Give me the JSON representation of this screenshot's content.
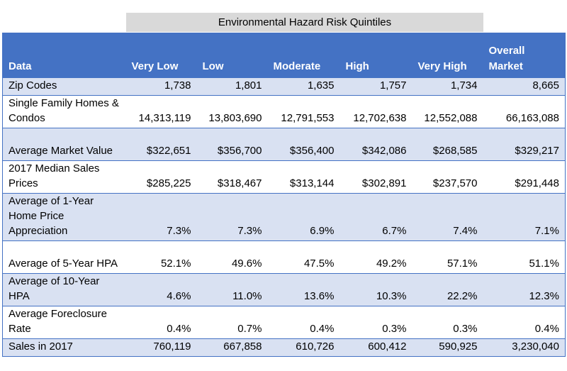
{
  "title": "Environmental Hazard Risk Quintiles",
  "headers": [
    "Data",
    "Very Low",
    "Low",
    "Moderate",
    "High",
    "Very High",
    "Overall Market"
  ],
  "rows": [
    {
      "label": "Zip Codes",
      "values": [
        "1,738",
        "1,801",
        "1,635",
        "1,757",
        "1,734",
        "8,665"
      ]
    },
    {
      "label": "Single Family Homes & Condos",
      "values": [
        "14,313,119",
        "13,803,690",
        "12,791,553",
        "12,702,638",
        "12,552,088",
        "66,163,088"
      ]
    },
    {
      "label": "Average Market Value",
      "values": [
        "$322,651",
        "$356,700",
        "$356,400",
        "$342,086",
        "$268,585",
        "$329,217"
      ]
    },
    {
      "label": "2017 Median Sales Prices",
      "values": [
        "$285,225",
        "$318,467",
        "$313,144",
        "$302,891",
        "$237,570",
        "$291,448"
      ]
    },
    {
      "label": "Average of 1-Year Home Price Appreciation",
      "values": [
        "7.3%",
        "7.3%",
        "6.9%",
        "6.7%",
        "7.4%",
        "7.1%"
      ]
    },
    {
      "label": "Average of 5-Year HPA",
      "values": [
        "52.1%",
        "49.6%",
        "47.5%",
        "49.2%",
        "57.1%",
        "51.1%"
      ]
    },
    {
      "label": "Average of 10-Year HPA",
      "values": [
        "4.6%",
        "11.0%",
        "13.6%",
        "10.3%",
        "22.2%",
        "12.3%"
      ]
    },
    {
      "label": "Average Foreclosure Rate",
      "values": [
        "0.4%",
        "0.7%",
        "0.4%",
        "0.3%",
        "0.3%",
        "0.4%"
      ]
    },
    {
      "label": "Sales in 2017",
      "values": [
        "760,119",
        "667,858",
        "610,726",
        "600,412",
        "590,925",
        "3,230,040"
      ]
    }
  ]
}
